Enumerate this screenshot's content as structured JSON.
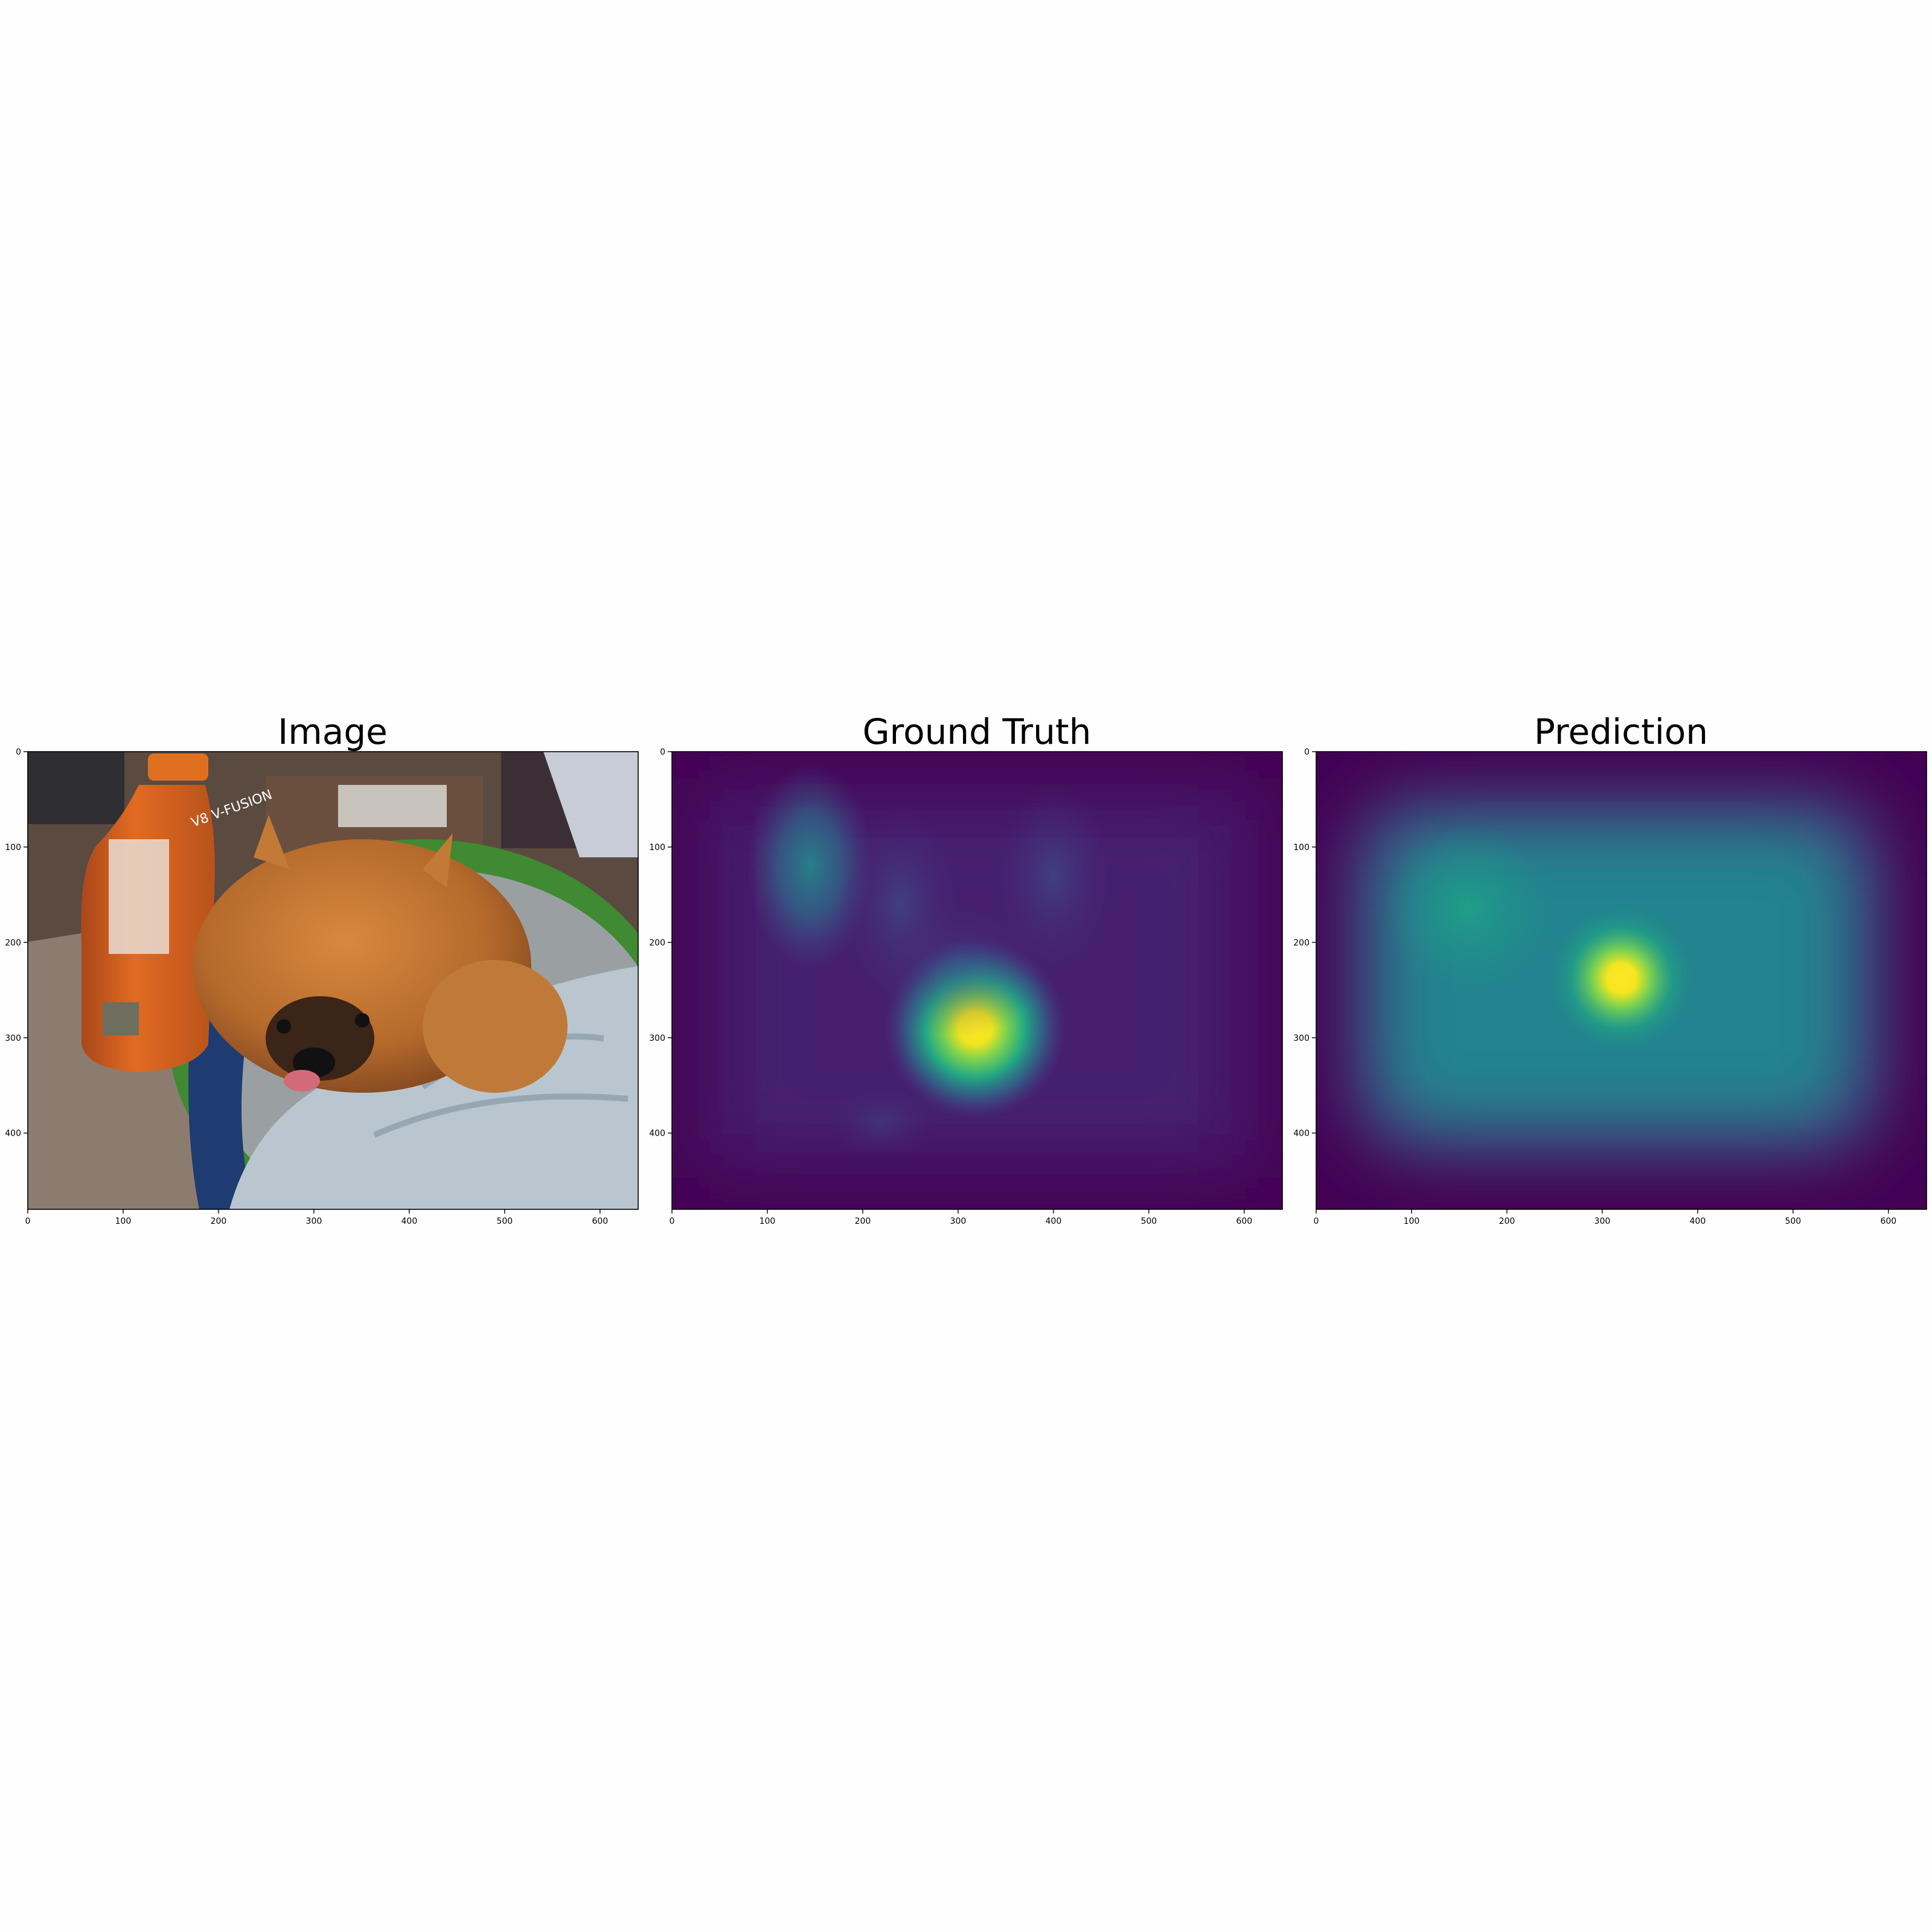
{
  "figure": {
    "panels": [
      {
        "title": "Image"
      },
      {
        "title": "Ground Truth"
      },
      {
        "title": "Prediction"
      }
    ]
  },
  "chart_data": [
    {
      "type": "heatmap",
      "title": "Image",
      "content": "photograph of a small fluffy orange dog lying on a light blue knitted blanket next to an orange V8 V-Fusion juice bottle",
      "xticks": [
        0,
        100,
        200,
        300,
        400,
        500,
        600
      ],
      "yticks": [
        0,
        100,
        200,
        300,
        400
      ],
      "xlim": [
        0,
        640
      ],
      "ylim": [
        480,
        0
      ],
      "bottle_label": "V8 V-FUSION"
    },
    {
      "type": "heatmap",
      "title": "Ground Truth",
      "colormap": "viridis",
      "xticks": [
        0,
        100,
        200,
        300,
        400,
        500,
        600
      ],
      "yticks": [
        0,
        100,
        200,
        300,
        400
      ],
      "xlim": [
        0,
        640
      ],
      "ylim": [
        480,
        0
      ],
      "hotspots": [
        {
          "x": 318,
          "y": 290,
          "intensity": 1.0
        },
        {
          "x": 145,
          "y": 120,
          "intensity": 0.45
        },
        {
          "x": 240,
          "y": 160,
          "intensity": 0.2
        },
        {
          "x": 400,
          "y": 130,
          "intensity": 0.18
        }
      ]
    },
    {
      "type": "heatmap",
      "title": "Prediction",
      "colormap": "viridis",
      "xticks": [
        0,
        100,
        200,
        300,
        400,
        500,
        600
      ],
      "yticks": [
        0,
        100,
        200,
        300,
        400
      ],
      "xlim": [
        0,
        640
      ],
      "ylim": [
        480,
        0
      ],
      "hotspots": [
        {
          "x": 320,
          "y": 238,
          "intensity": 1.0
        },
        {
          "x": 160,
          "y": 165,
          "intensity": 0.5
        }
      ],
      "plateau": {
        "x0": 70,
        "x1": 560,
        "y0": 80,
        "y1": 390,
        "intensity": 0.42
      }
    }
  ]
}
